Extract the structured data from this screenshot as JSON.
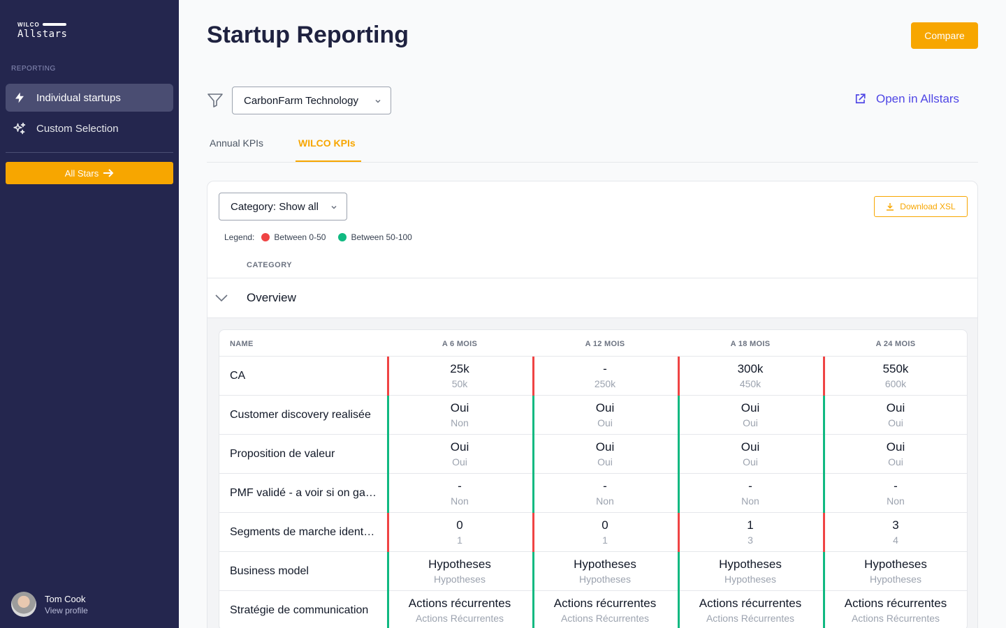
{
  "sidebar": {
    "logo_small": "WILCO",
    "logo_main": "Allstars",
    "section": "REPORTING",
    "items": [
      {
        "label": "Individual startups",
        "icon": "lightning-icon",
        "active": true
      },
      {
        "label": "Custom Selection",
        "icon": "sparkles-icon",
        "active": false
      }
    ],
    "cta_label": "All Stars",
    "profile": {
      "name": "Tom Cook",
      "link": "View profile"
    }
  },
  "header": {
    "title": "Startup Reporting",
    "compare_label": "Compare"
  },
  "filter": {
    "startup_value": "CarbonFarm Technology",
    "open_link": "Open in Allstars"
  },
  "tabs": [
    {
      "label": "Annual KPIs",
      "active": false
    },
    {
      "label": "WILCO KPIs",
      "active": true
    }
  ],
  "card": {
    "category_select": "Category: Show all",
    "download_label": "Download XSL",
    "legend": {
      "label": "Legend:",
      "items": [
        {
          "label": "Between 0-50",
          "color": "#ef4444"
        },
        {
          "label": "Between 50-100",
          "color": "#10b981"
        }
      ]
    },
    "category_header": "CATEGORY",
    "group": "Overview",
    "table": {
      "name_header": "NAME",
      "columns": [
        "A 6 MOIS",
        "A 12 MOIS",
        "A 18 MOIS",
        "A 24 MOIS"
      ],
      "rows": [
        {
          "name": "CA",
          "cells": [
            {
              "v": "25k",
              "t": "50k",
              "s": "red"
            },
            {
              "v": "-",
              "t": "250k",
              "s": "red"
            },
            {
              "v": "300k",
              "t": "450k",
              "s": "red"
            },
            {
              "v": "550k",
              "t": "600k",
              "s": "red"
            }
          ]
        },
        {
          "name": "Customer discovery realisée",
          "cells": [
            {
              "v": "Oui",
              "t": "Non",
              "s": "green"
            },
            {
              "v": "Oui",
              "t": "Oui",
              "s": "green"
            },
            {
              "v": "Oui",
              "t": "Oui",
              "s": "green"
            },
            {
              "v": "Oui",
              "t": "Oui",
              "s": "green"
            }
          ]
        },
        {
          "name": "Proposition de valeur",
          "cells": [
            {
              "v": "Oui",
              "t": "Oui",
              "s": "green"
            },
            {
              "v": "Oui",
              "t": "Oui",
              "s": "green"
            },
            {
              "v": "Oui",
              "t": "Oui",
              "s": "green"
            },
            {
              "v": "Oui",
              "t": "Oui",
              "s": "green"
            }
          ]
        },
        {
          "name": "PMF validé - a voir si on garde",
          "cells": [
            {
              "v": "-",
              "t": "Non",
              "s": "green"
            },
            {
              "v": "-",
              "t": "Non",
              "s": "green"
            },
            {
              "v": "-",
              "t": "Non",
              "s": "green"
            },
            {
              "v": "-",
              "t": "Non",
              "s": "green"
            }
          ]
        },
        {
          "name": "Segments de marche identifiés",
          "cells": [
            {
              "v": "0",
              "t": "1",
              "s": "red"
            },
            {
              "v": "0",
              "t": "1",
              "s": "red"
            },
            {
              "v": "1",
              "t": "3",
              "s": "red"
            },
            {
              "v": "3",
              "t": "4",
              "s": "red"
            }
          ]
        },
        {
          "name": "Business model",
          "cells": [
            {
              "v": "Hypotheses",
              "t": "Hypotheses",
              "s": "green"
            },
            {
              "v": "Hypotheses",
              "t": "Hypotheses",
              "s": "green"
            },
            {
              "v": "Hypotheses",
              "t": "Hypotheses",
              "s": "green"
            },
            {
              "v": "Hypotheses",
              "t": "Hypotheses",
              "s": "green"
            }
          ]
        },
        {
          "name": "Stratégie de communication",
          "cells": [
            {
              "v": "Actions récurrentes",
              "t": "Actions Récurrentes",
              "s": "green"
            },
            {
              "v": "Actions récurrentes",
              "t": "Actions Récurrentes",
              "s": "green"
            },
            {
              "v": "Actions récurrentes",
              "t": "Actions Récurrentes",
              "s": "green"
            },
            {
              "v": "Actions récurrentes",
              "t": "Actions Récurrentes",
              "s": "green"
            }
          ]
        }
      ]
    }
  },
  "colors": {
    "sidebar": "#24264e",
    "accent": "#f7a600",
    "link": "#4f46e5",
    "red": "#ef4444",
    "green": "#10b981"
  }
}
